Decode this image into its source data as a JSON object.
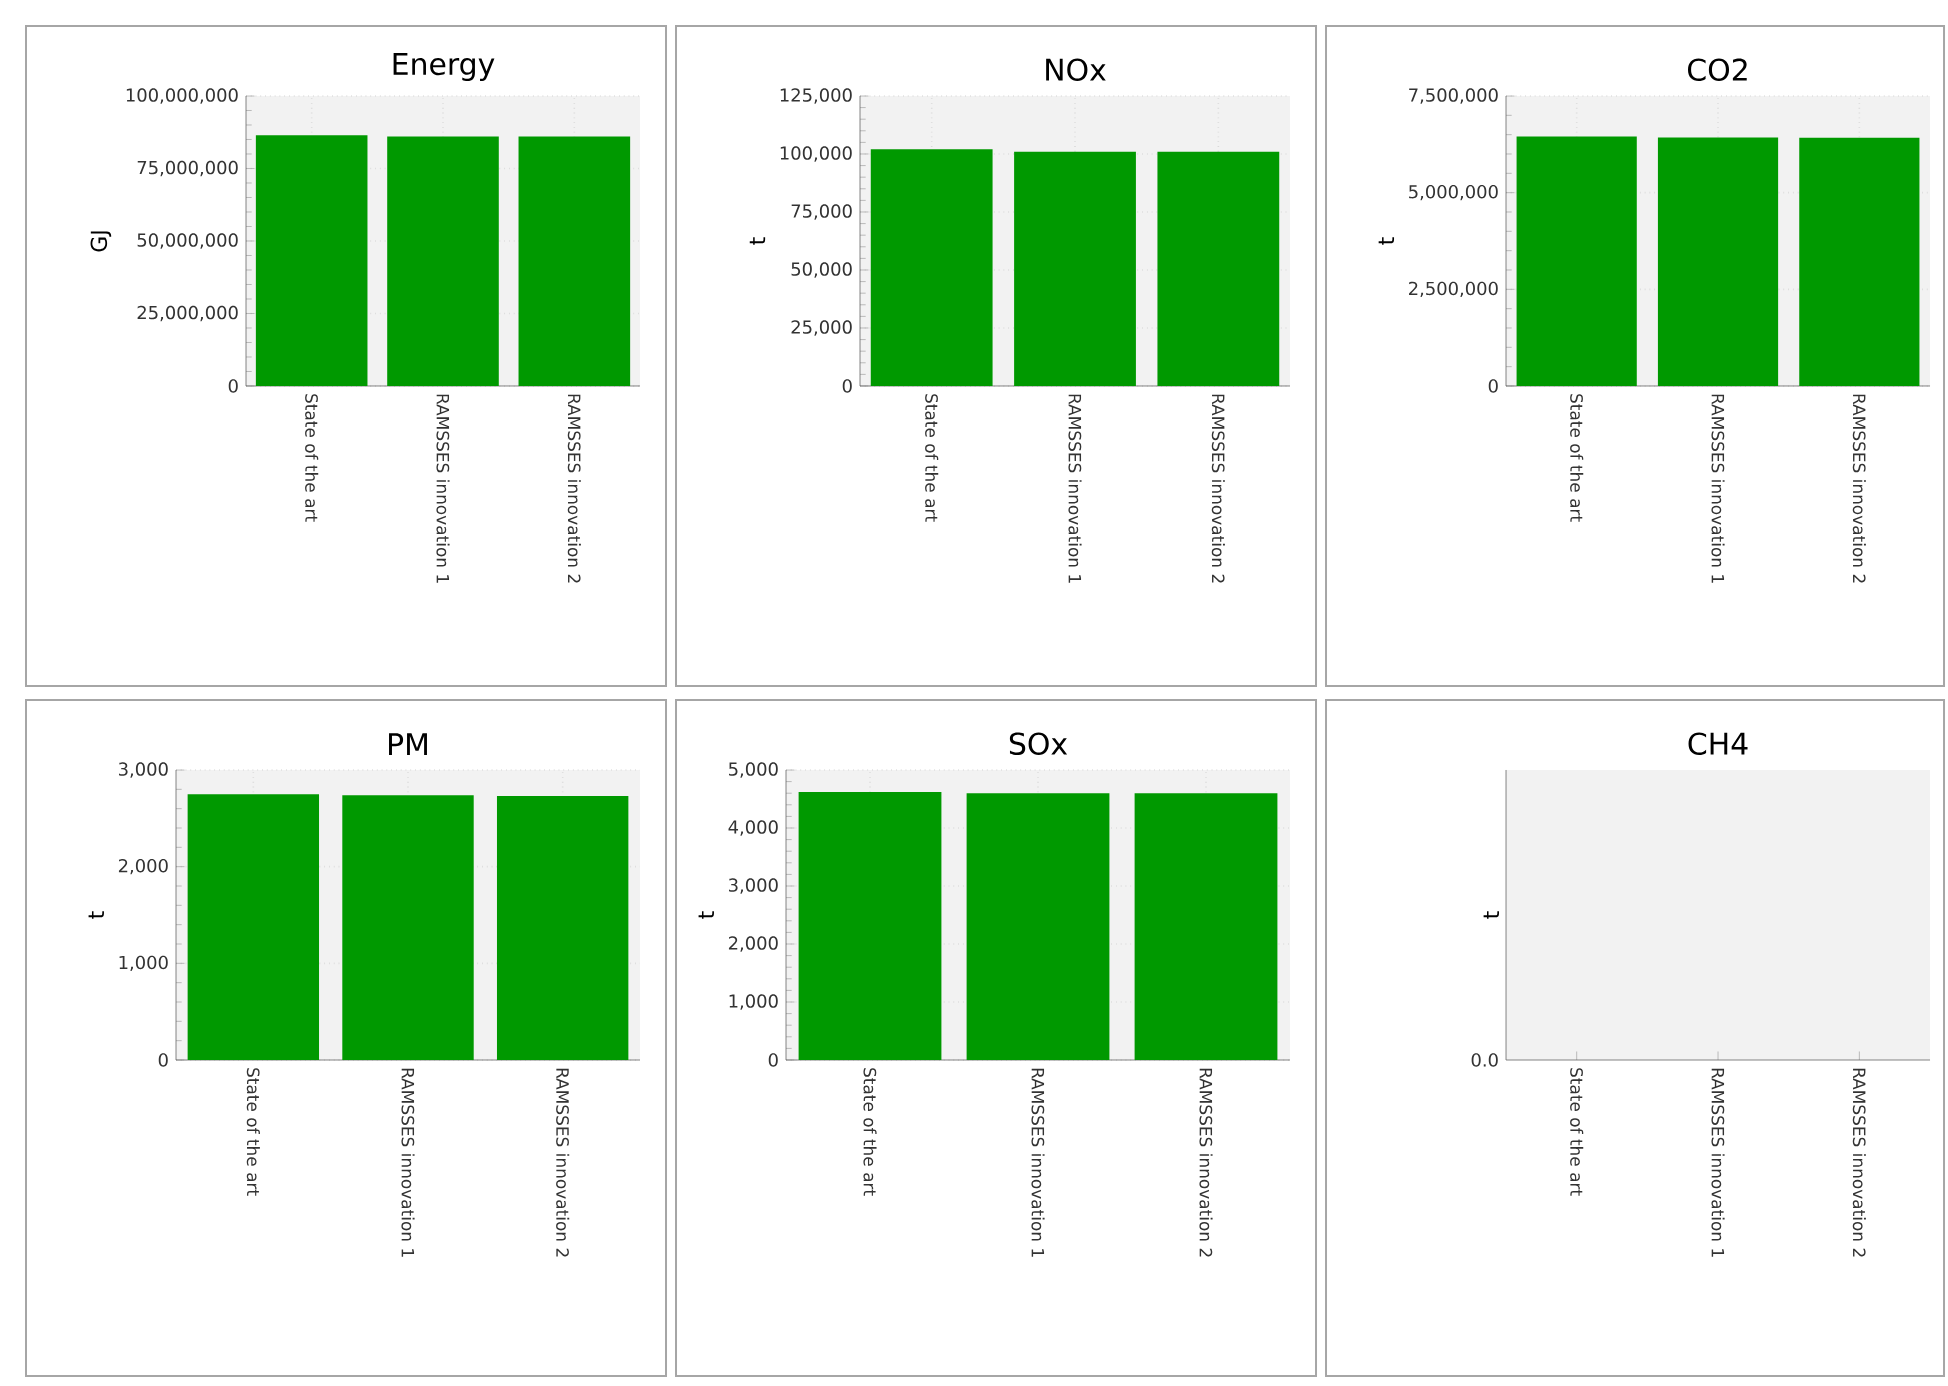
{
  "chart_data": [
    {
      "type": "bar",
      "title": "Energy",
      "ylabel": "GJ",
      "categories": [
        "State of the art",
        "RAMSSES innovation 1",
        "RAMSSES innovation 2"
      ],
      "values": [
        86500000,
        86000000,
        86000000
      ],
      "color": "#009900",
      "ylim": [
        0,
        100000000
      ],
      "yticks": [
        {
          "value": 0,
          "label": "0"
        },
        {
          "value": 25000000,
          "label": "25,000,000"
        },
        {
          "value": 50000000,
          "label": "50,000,000"
        },
        {
          "value": 75000000,
          "label": "75,000,000"
        },
        {
          "value": 100000000,
          "label": "100,000,000"
        }
      ],
      "grid": true
    },
    {
      "type": "bar",
      "title": "NOx",
      "ylabel": "t",
      "categories": [
        "State of the art",
        "RAMSSES innovation 1",
        "RAMSSES innovation 2"
      ],
      "values": [
        102000,
        101000,
        101000
      ],
      "color": "#009900",
      "ylim": [
        0,
        125000
      ],
      "yticks": [
        {
          "value": 0,
          "label": "0"
        },
        {
          "value": 25000,
          "label": "25,000"
        },
        {
          "value": 50000,
          "label": "50,000"
        },
        {
          "value": 75000,
          "label": "75,000"
        },
        {
          "value": 100000,
          "label": "100,000"
        },
        {
          "value": 125000,
          "label": "125,000"
        }
      ],
      "grid": true
    },
    {
      "type": "bar",
      "title": "CO2",
      "ylabel": "t",
      "categories": [
        "State of the art",
        "RAMSSES innovation 1",
        "RAMSSES innovation 2"
      ],
      "values": [
        6450000,
        6430000,
        6420000
      ],
      "color": "#009900",
      "ylim": [
        0,
        7500000
      ],
      "yticks": [
        {
          "value": 0,
          "label": "0"
        },
        {
          "value": 2500000,
          "label": "2,500,000"
        },
        {
          "value": 5000000,
          "label": "5,000,000"
        },
        {
          "value": 7500000,
          "label": "7,500,000"
        }
      ],
      "grid": true
    },
    {
      "type": "bar",
      "title": "PM",
      "ylabel": "t",
      "categories": [
        "State of the art",
        "RAMSSES innovation 1",
        "RAMSSES innovation 2"
      ],
      "values": [
        2750,
        2740,
        2730
      ],
      "color": "#009900",
      "ylim": [
        0,
        3000
      ],
      "yticks": [
        {
          "value": 0,
          "label": "0"
        },
        {
          "value": 1000,
          "label": "1,000"
        },
        {
          "value": 2000,
          "label": "2,000"
        },
        {
          "value": 3000,
          "label": "3,000"
        }
      ],
      "grid": true
    },
    {
      "type": "bar",
      "title": "SOx",
      "ylabel": "t",
      "categories": [
        "State of the art",
        "RAMSSES innovation 1",
        "RAMSSES innovation 2"
      ],
      "values": [
        4620,
        4600,
        4600
      ],
      "color": "#009900",
      "ylim": [
        0,
        5000
      ],
      "yticks": [
        {
          "value": 0,
          "label": "0"
        },
        {
          "value": 1000,
          "label": "1,000"
        },
        {
          "value": 2000,
          "label": "2,000"
        },
        {
          "value": 3000,
          "label": "3,000"
        },
        {
          "value": 4000,
          "label": "4,000"
        },
        {
          "value": 5000,
          "label": "5,000"
        }
      ],
      "grid": true
    },
    {
      "type": "other",
      "title": "CH4",
      "ylabel": "t",
      "categories": [
        "State of the art",
        "RAMSSES innovation 1",
        "RAMSSES innovation 2"
      ],
      "annotations": [
        "0.0"
      ]
    }
  ]
}
